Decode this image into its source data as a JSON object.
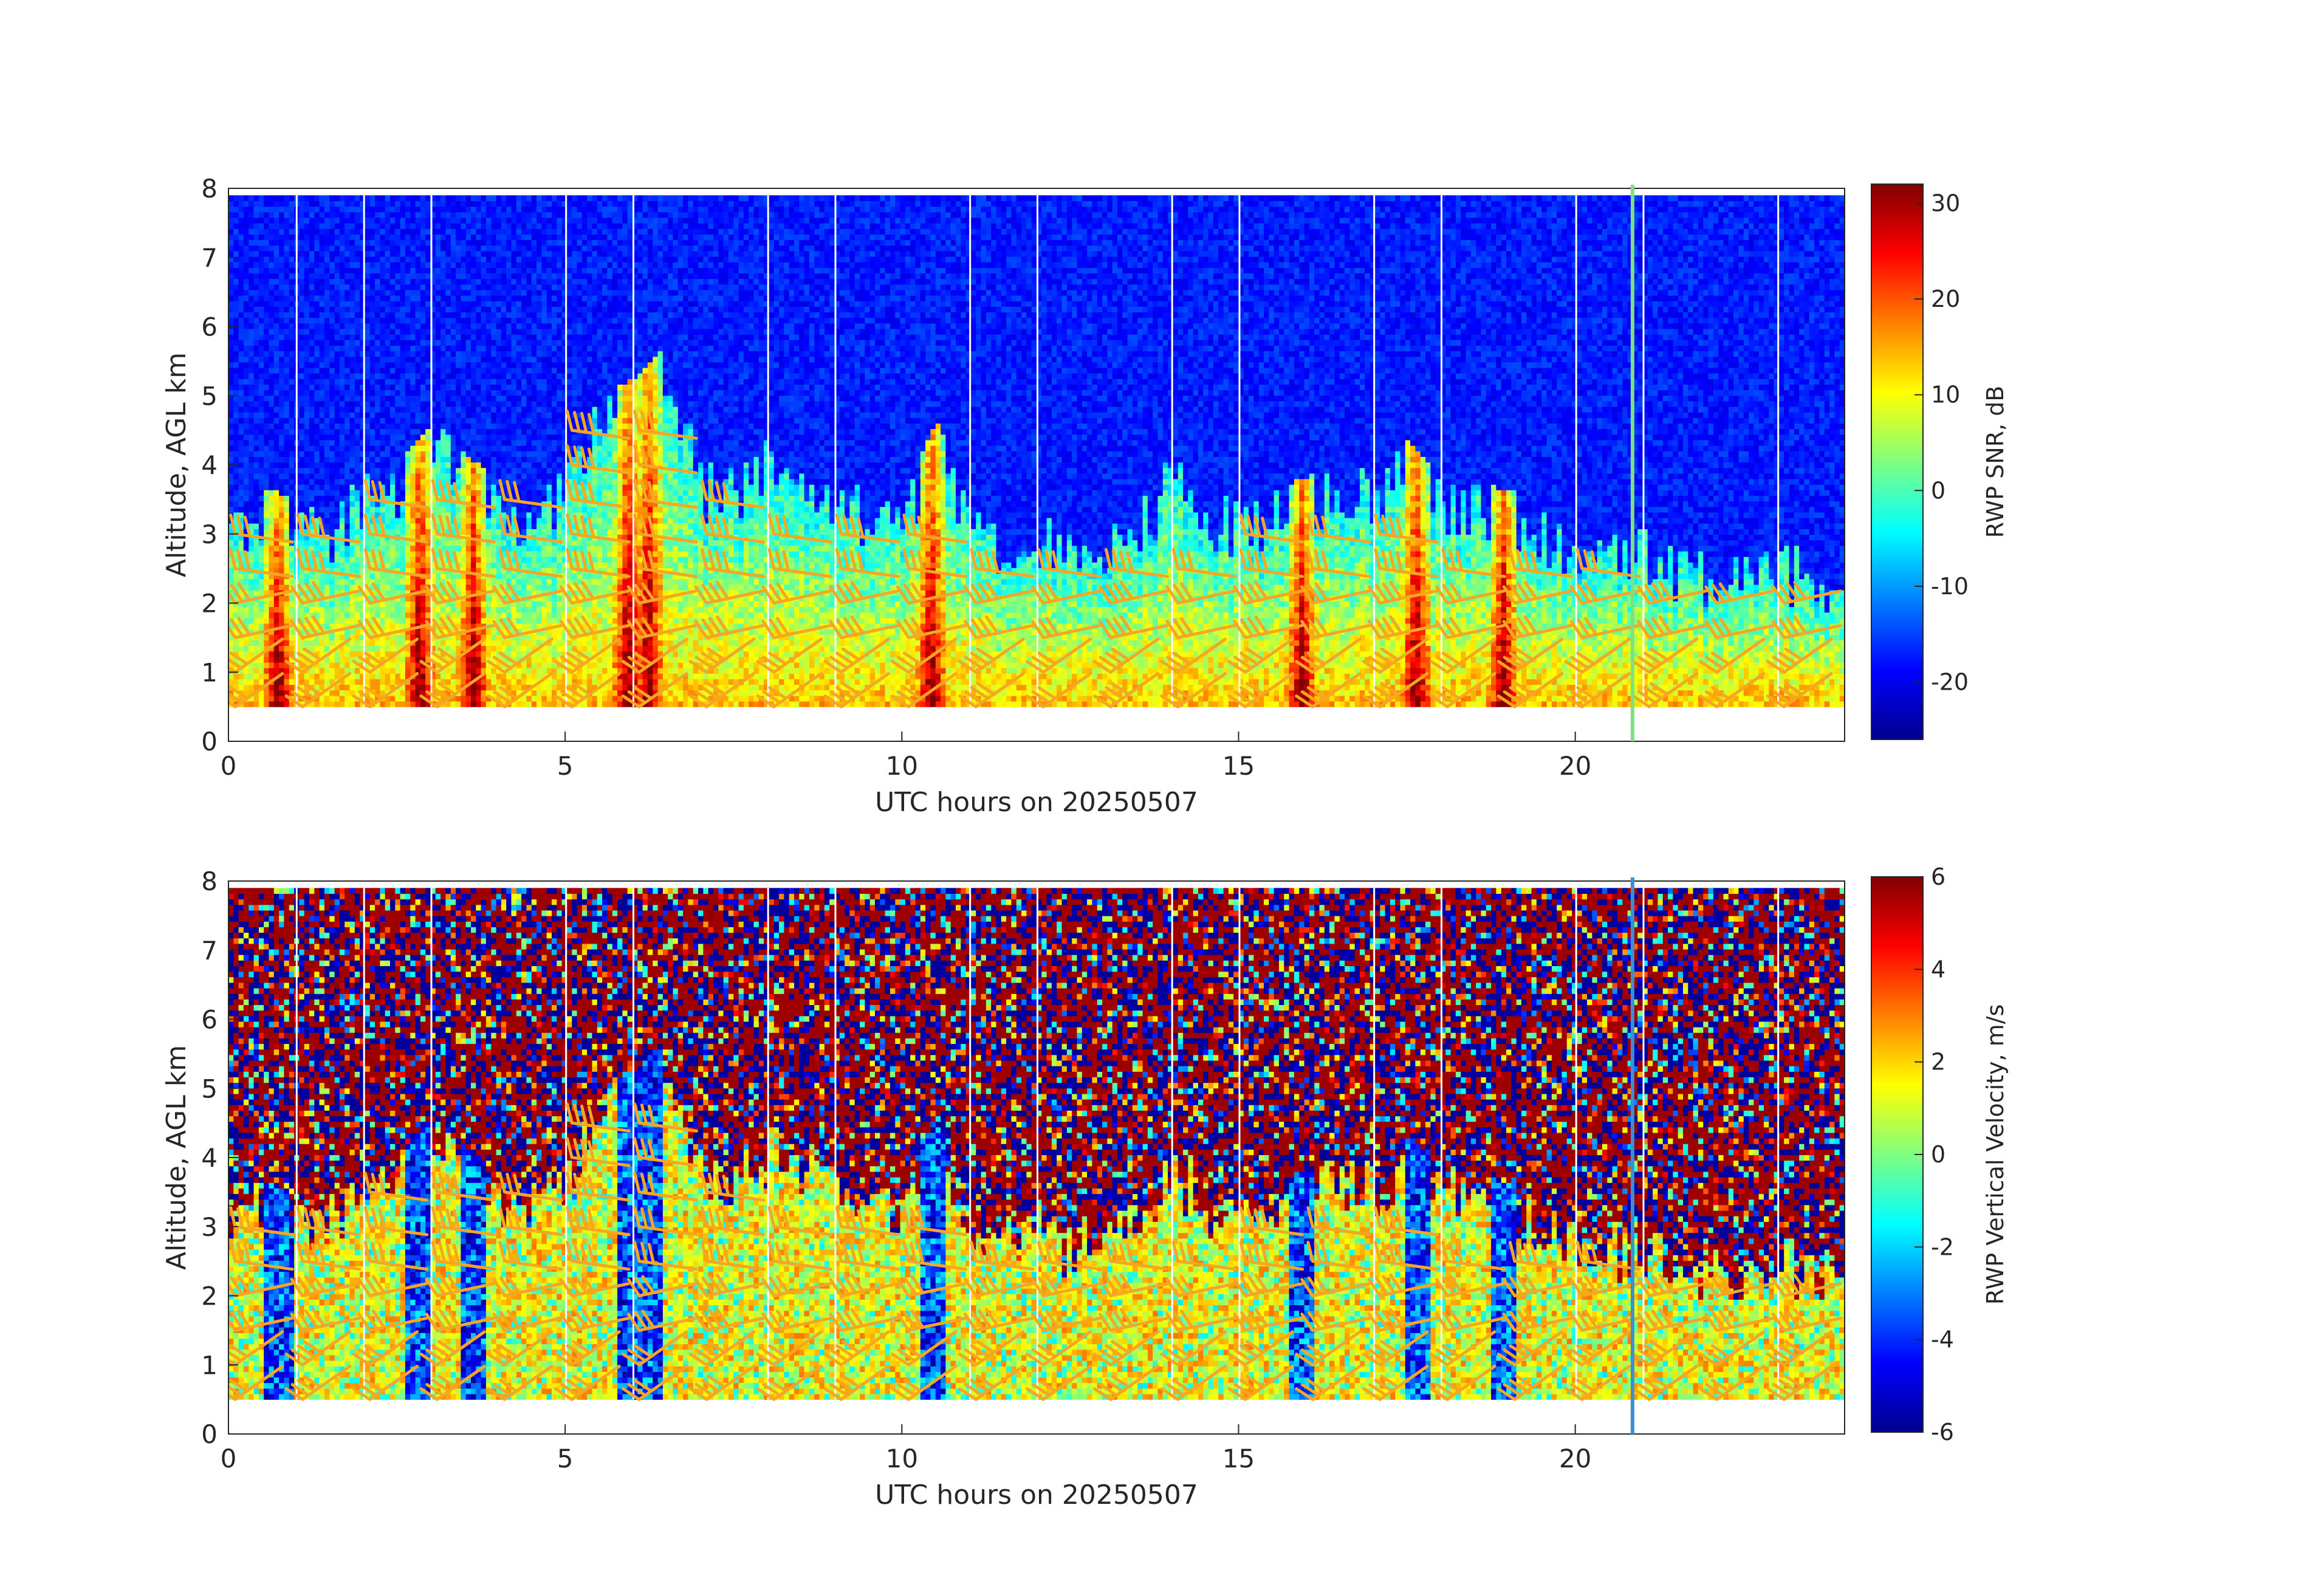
{
  "figure": {
    "background": "#ffffff"
  },
  "chart_data": [
    {
      "type": "heatmap",
      "title": "",
      "xlabel": "UTC hours on 20250507",
      "ylabel": "Altitude, AGL km",
      "xlim": [
        0,
        24
      ],
      "ylim": [
        0,
        8
      ],
      "xticks": [
        0,
        5,
        10,
        15,
        20
      ],
      "yticks": [
        0,
        1,
        2,
        3,
        4,
        5,
        6,
        7,
        8
      ],
      "data_range_km": [
        0.5,
        7.9
      ],
      "colorbar": {
        "label": "RWP SNR, dB",
        "range": [
          -26,
          32
        ],
        "ticks": [
          30,
          20,
          10,
          0,
          -10,
          -20
        ],
        "colormap": "jet"
      },
      "profile_gaps_hours": [
        1.0,
        2.0,
        3.0,
        5.0,
        6.0,
        8.0,
        9.0,
        11.0,
        12.0,
        14.0,
        15.0,
        17.0,
        18.0,
        20.0,
        21.0,
        23.0
      ],
      "marker": {
        "hour": 20.85,
        "color": "#7fe07f"
      },
      "cloud_tops_km": [
        [
          0,
          3.0
        ],
        [
          0.5,
          3.2
        ],
        [
          1.0,
          3.1
        ],
        [
          1.5,
          3.0
        ],
        [
          2.0,
          3.5
        ],
        [
          2.5,
          3.6
        ],
        [
          3.0,
          4.2
        ],
        [
          3.5,
          3.7
        ],
        [
          4.0,
          3.3
        ],
        [
          4.5,
          3.2
        ],
        [
          5.0,
          3.5
        ],
        [
          5.5,
          4.6
        ],
        [
          6.0,
          4.8
        ],
        [
          6.5,
          5.3
        ],
        [
          7.0,
          3.6
        ],
        [
          7.5,
          3.5
        ],
        [
          8.0,
          4.0
        ],
        [
          8.5,
          3.8
        ],
        [
          9.0,
          3.4
        ],
        [
          9.5,
          3.1
        ],
        [
          10.0,
          3.2
        ],
        [
          10.5,
          4.2
        ],
        [
          11.0,
          3.0
        ],
        [
          11.5,
          2.8
        ],
        [
          12.0,
          2.9
        ],
        [
          12.5,
          2.6
        ],
        [
          13.0,
          2.7
        ],
        [
          13.5,
          3.0
        ],
        [
          14.0,
          3.7
        ],
        [
          14.5,
          3.2
        ],
        [
          15.0,
          3.0
        ],
        [
          15.5,
          3.2
        ],
        [
          16.0,
          3.4
        ],
        [
          16.5,
          3.6
        ],
        [
          17.0,
          3.5
        ],
        [
          17.5,
          3.9
        ],
        [
          18.0,
          3.4
        ],
        [
          18.5,
          3.3
        ],
        [
          19.0,
          3.2
        ],
        [
          19.5,
          2.9
        ],
        [
          20.0,
          2.7
        ],
        [
          20.5,
          2.6
        ],
        [
          21.0,
          2.6
        ],
        [
          21.5,
          2.4
        ],
        [
          22.0,
          2.3
        ],
        [
          22.5,
          2.3
        ],
        [
          23.0,
          2.4
        ],
        [
          23.5,
          2.3
        ],
        [
          24.0,
          2.2
        ]
      ],
      "intense_columns_hours": [
        0.7,
        2.8,
        3.6,
        5.9,
        6.2,
        10.4,
        15.9,
        17.6,
        18.9
      ]
    },
    {
      "type": "heatmap",
      "title": "",
      "xlabel": "UTC hours on 20250507",
      "ylabel": "Altitude, AGL km",
      "xlim": [
        0,
        24
      ],
      "ylim": [
        0,
        8
      ],
      "xticks": [
        0,
        5,
        10,
        15,
        20
      ],
      "yticks": [
        0,
        1,
        2,
        3,
        4,
        5,
        6,
        7,
        8
      ],
      "data_range_km": [
        0.5,
        7.9
      ],
      "colorbar": {
        "label": "RWP Vertical Velocity, m/s",
        "range": [
          -6,
          6
        ],
        "ticks": [
          6,
          4,
          2,
          0,
          -2,
          -4,
          -6
        ],
        "colormap": "jet"
      },
      "profile_gaps_hours": [
        1.0,
        2.0,
        3.0,
        5.0,
        6.0,
        8.0,
        9.0,
        11.0,
        12.0,
        14.0,
        15.0,
        17.0,
        18.0,
        20.0,
        21.0,
        23.0
      ],
      "marker": {
        "hour": 20.85,
        "color": "#3a8fd8"
      },
      "downdraft_columns_hours": [
        0.7,
        2.8,
        3.6,
        6.0,
        10.4,
        15.9,
        17.6,
        18.9
      ]
    }
  ],
  "wind_barbs": {
    "color": "#f5a623",
    "times_hours": [
      0.0,
      1.0,
      2.0,
      3.0,
      4.0,
      5.0,
      6.0,
      7.0,
      8.0,
      9.0,
      10.0,
      11.0,
      12.0,
      13.0,
      14.0,
      15.0,
      16.0,
      17.0,
      18.0,
      19.0,
      20.0,
      21.0,
      22.0,
      23.0
    ],
    "heights_km": [
      0.5,
      1.0,
      1.5,
      2.0,
      2.5,
      3.0,
      3.5,
      4.0,
      4.5
    ],
    "height_tops_km": [
      3.2,
      3.2,
      3.5,
      3.6,
      3.6,
      4.8,
      4.6,
      3.5,
      3.0,
      3.3,
      3.3,
      2.7,
      2.7,
      2.7,
      2.7,
      3.0,
      3.3,
      3.2,
      2.8,
      2.6,
      2.6,
      2.4,
      2.4,
      2.2
    ]
  }
}
